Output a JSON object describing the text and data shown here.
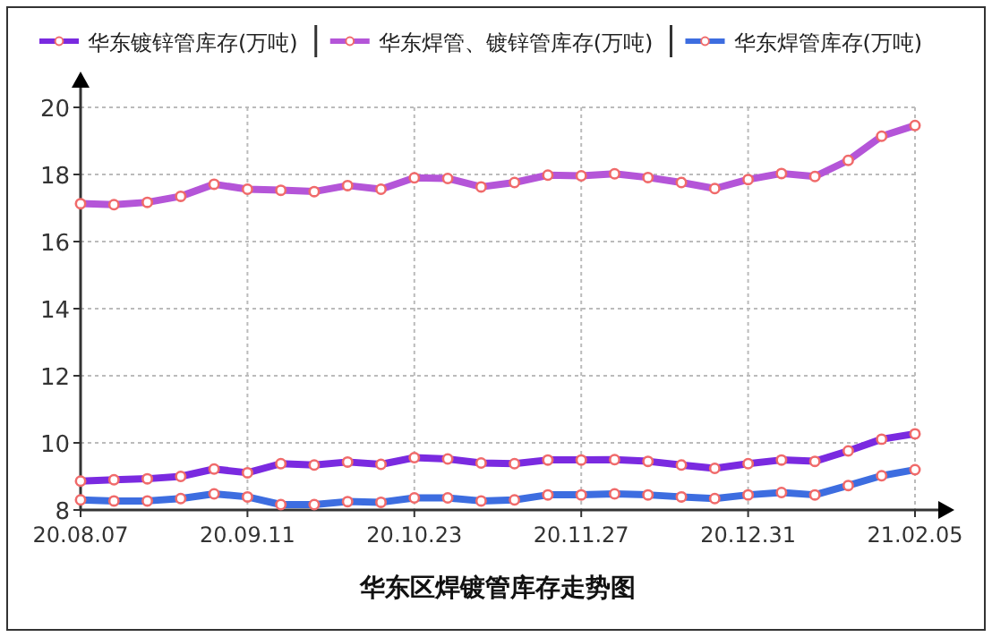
{
  "chart_data": {
    "type": "line",
    "title": "华东区焊镀管库存走势图",
    "categories": [
      "20.08.07",
      null,
      null,
      null,
      null,
      "20.09.11",
      null,
      null,
      null,
      null,
      "20.10.23",
      null,
      null,
      null,
      null,
      "20.11.27",
      null,
      null,
      null,
      null,
      "20.12.31",
      null,
      null,
      null,
      null,
      "21.02.05"
    ],
    "series": [
      {
        "name": "华东镀锌管库存(万吨)",
        "color": "#7a2ae0",
        "values": [
          8.86,
          8.9,
          8.93,
          9.0,
          9.22,
          9.11,
          9.38,
          9.34,
          9.43,
          9.36,
          9.56,
          9.52,
          9.4,
          9.38,
          9.49,
          9.49,
          9.5,
          9.45,
          9.34,
          9.24,
          9.38,
          9.49,
          9.45,
          9.76,
          10.11,
          10.27
        ]
      },
      {
        "name": "华东焊管、镀锌管库存(万吨)",
        "color": "#b455d8",
        "values": [
          17.13,
          17.1,
          17.17,
          17.35,
          17.71,
          17.56,
          17.53,
          17.49,
          17.67,
          17.56,
          17.9,
          17.88,
          17.63,
          17.76,
          17.98,
          17.96,
          18.02,
          17.91,
          17.76,
          17.58,
          17.85,
          18.03,
          17.94,
          18.42,
          19.14,
          19.46
        ]
      },
      {
        "name": "华东焊管库存(万吨)",
        "color": "#3d6de0",
        "values": [
          8.3,
          8.27,
          8.27,
          8.34,
          8.48,
          8.39,
          8.16,
          8.16,
          8.25,
          8.23,
          8.36,
          8.36,
          8.27,
          8.3,
          8.45,
          8.45,
          8.48,
          8.45,
          8.39,
          8.34,
          8.45,
          8.52,
          8.45,
          8.73,
          9.02,
          9.2
        ]
      }
    ],
    "ylim": [
      8,
      20
    ],
    "yticks": [
      8,
      10,
      12,
      14,
      16,
      18,
      20
    ],
    "grid": true,
    "legend": "top",
    "marker": "circle"
  }
}
